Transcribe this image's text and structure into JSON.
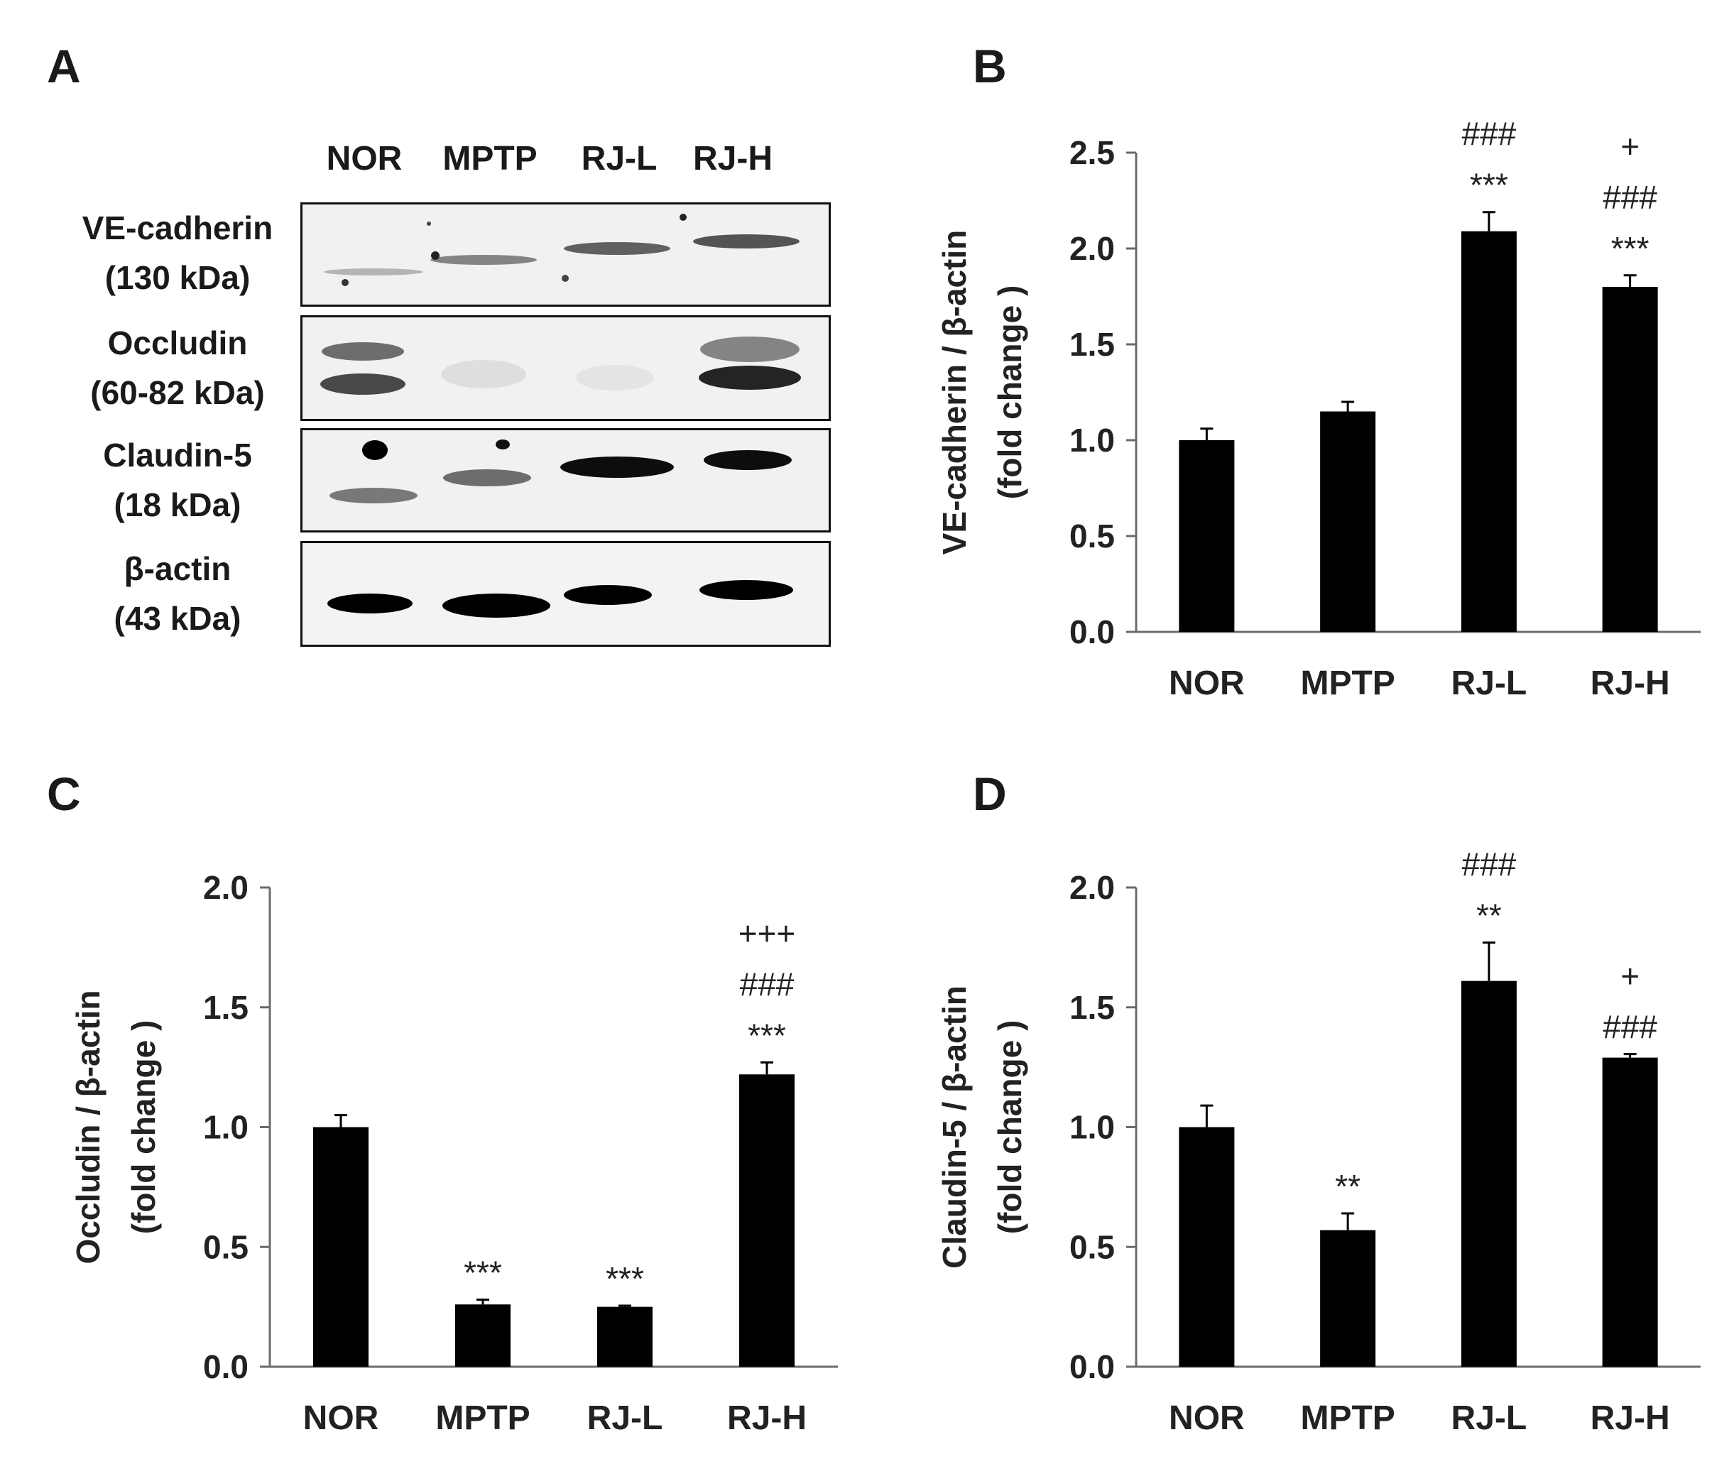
{
  "panels": {
    "A": "A",
    "B": "B",
    "C": "C",
    "D": "D"
  },
  "blot": {
    "lanes": [
      "NOR",
      "MPTP",
      "RJ-L",
      "RJ-H"
    ],
    "rows": [
      {
        "name": "VE-cadherin",
        "size": "(130 kDa)"
      },
      {
        "name": "Occludin",
        "size": "(60-82 kDa)"
      },
      {
        "name": "Claudin-5",
        "size": "(18 kDa)"
      },
      {
        "name": "β-actin",
        "size": "(43 kDa)"
      }
    ],
    "band_intensity": {
      "VE-cadherin": [
        0.25,
        0.45,
        0.6,
        0.65
      ],
      "Occludin": [
        0.7,
        0.08,
        0.05,
        0.85
      ],
      "Claudin-5": [
        0.5,
        0.55,
        0.95,
        0.95
      ],
      "β-actin": [
        1.0,
        1.0,
        1.0,
        1.0
      ]
    }
  },
  "chart_data": [
    {
      "panel": "B",
      "type": "bar",
      "categories": [
        "NOR",
        "MPTP",
        "RJ-L",
        "RJ-H"
      ],
      "values": [
        1.0,
        1.15,
        2.09,
        1.8
      ],
      "errors": [
        0.06,
        0.05,
        0.1,
        0.06
      ],
      "annotations": [
        [],
        [],
        [
          "***",
          "###"
        ],
        [
          "***",
          "###",
          "+"
        ]
      ],
      "ylabel": [
        "VE-cadherin / β-actin",
        "(fold change )"
      ],
      "ylim": [
        0,
        2.5
      ],
      "yticks": [
        "0.0",
        "0.5",
        "1.0",
        "1.5",
        "2.0",
        "2.5"
      ],
      "bar_color": "#000000"
    },
    {
      "panel": "C",
      "type": "bar",
      "categories": [
        "NOR",
        "MPTP",
        "RJ-L",
        "RJ-H"
      ],
      "values": [
        1.0,
        0.26,
        0.25,
        1.22
      ],
      "errors": [
        0.05,
        0.02,
        0.005,
        0.05
      ],
      "annotations": [
        [],
        [
          "***"
        ],
        [
          "***"
        ],
        [
          "***",
          "###",
          "+++"
        ]
      ],
      "ylabel": [
        "Occludin / β-actin",
        "(fold change )"
      ],
      "ylim": [
        0,
        2.0
      ],
      "yticks": [
        "0.0",
        "0.5",
        "1.0",
        "1.5",
        "2.0"
      ],
      "bar_color": "#000000"
    },
    {
      "panel": "D",
      "type": "bar",
      "categories": [
        "NOR",
        "MPTP",
        "RJ-L",
        "RJ-H"
      ],
      "values": [
        1.0,
        0.57,
        1.61,
        1.29
      ],
      "errors": [
        0.09,
        0.07,
        0.16,
        0.015
      ],
      "annotations": [
        [],
        [
          "**"
        ],
        [
          "**",
          "###"
        ],
        [
          "###",
          "+"
        ]
      ],
      "ylabel": [
        "Claudin-5 / β-actin",
        "(fold change )"
      ],
      "ylim": [
        0,
        2.0
      ],
      "yticks": [
        "0.0",
        "0.5",
        "1.0",
        "1.5",
        "2.0"
      ],
      "bar_color": "#000000"
    }
  ]
}
